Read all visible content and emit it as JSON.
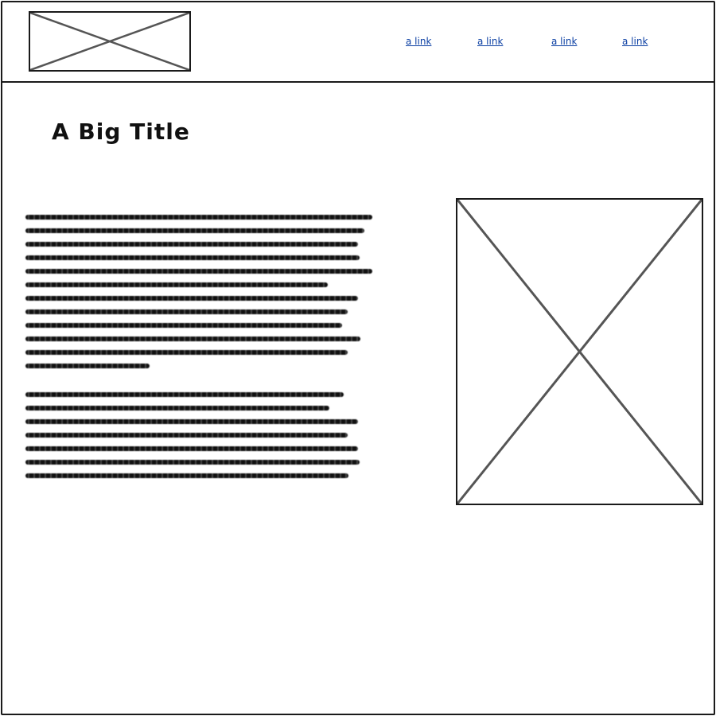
{
  "header": {
    "logo_icon": "placeholder-image-icon",
    "nav": [
      {
        "label": "a link"
      },
      {
        "label": "a link"
      },
      {
        "label": "a link"
      },
      {
        "label": "a link"
      }
    ]
  },
  "main": {
    "title": "A Big Title",
    "image_icon": "placeholder-image-icon",
    "paragraphs": [
      {
        "lines": 12
      },
      {
        "lines": 7
      }
    ],
    "colors": {
      "link": "#0b3fa3",
      "stroke": "#1a1a1a"
    }
  }
}
